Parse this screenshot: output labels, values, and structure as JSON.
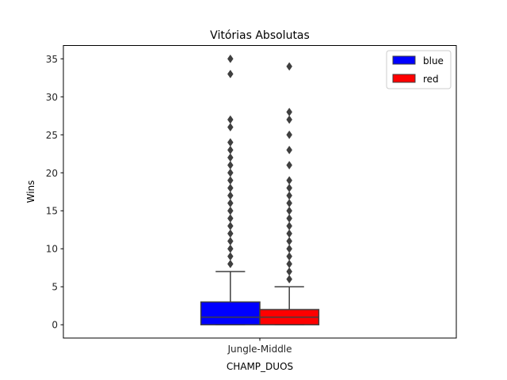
{
  "chart_data": {
    "type": "box",
    "title": "Vitórias Absolutas",
    "xlabel": "CHAMP_DUOS",
    "ylabel": "Wins",
    "categories": [
      "Jungle-Middle"
    ],
    "ylim": [
      -1.75,
      36.75
    ],
    "yticks": [
      0,
      5,
      10,
      15,
      20,
      25,
      30,
      35
    ],
    "legend_position": "top-right",
    "grid": false,
    "series": [
      {
        "name": "blue",
        "color": "#0000ff",
        "category": "Jungle-Middle",
        "min": 0,
        "q1": 0,
        "median": 1,
        "q3": 3,
        "whisker_high": 7,
        "outliers": [
          8,
          9,
          10,
          11,
          12,
          13,
          14,
          15,
          16,
          17,
          18,
          19,
          20,
          21,
          22,
          23,
          24,
          26,
          27,
          33,
          35
        ]
      },
      {
        "name": "red",
        "color": "#ff0000",
        "category": "Jungle-Middle",
        "min": 0,
        "q1": 0,
        "median": 1,
        "q3": 2,
        "whisker_high": 5,
        "outliers": [
          6,
          7,
          8,
          9,
          10,
          11,
          12,
          13,
          14,
          15,
          16,
          17,
          18,
          19,
          21,
          23,
          25,
          27,
          28,
          34
        ]
      }
    ]
  }
}
